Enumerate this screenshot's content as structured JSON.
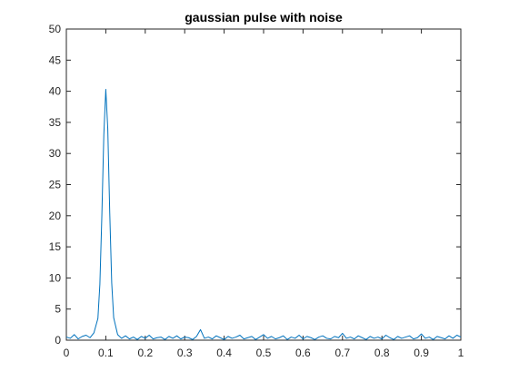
{
  "window": {
    "background": "#ffffff"
  },
  "chart_data": {
    "type": "line",
    "title": "gaussian pulse with noise",
    "xlabel": "",
    "ylabel": "",
    "xlim": [
      0,
      1
    ],
    "ylim": [
      0,
      50
    ],
    "xticks": [
      0,
      0.1,
      0.2,
      0.3,
      0.4,
      0.5,
      0.6,
      0.7,
      0.8,
      0.9,
      1
    ],
    "xtick_labels": [
      "0",
      "0.1",
      "0.2",
      "0.3",
      "0.4",
      "0.5",
      "0.6",
      "0.7",
      "0.8",
      "0.9",
      "1"
    ],
    "yticks": [
      0,
      5,
      10,
      15,
      20,
      25,
      30,
      35,
      40,
      45,
      50
    ],
    "ytick_labels": [
      "0",
      "5",
      "10",
      "15",
      "20",
      "25",
      "30",
      "35",
      "40",
      "45",
      "50"
    ],
    "grid": false,
    "series": [
      {
        "color": "#0072BD",
        "x": [
          0.0,
          0.01,
          0.02,
          0.03,
          0.04,
          0.05,
          0.06,
          0.07,
          0.08,
          0.085,
          0.09,
          0.095,
          0.1,
          0.105,
          0.11,
          0.115,
          0.12,
          0.13,
          0.14,
          0.15,
          0.16,
          0.17,
          0.18,
          0.19,
          0.2,
          0.21,
          0.22,
          0.23,
          0.24,
          0.25,
          0.26,
          0.27,
          0.28,
          0.29,
          0.3,
          0.31,
          0.32,
          0.33,
          0.34,
          0.35,
          0.36,
          0.37,
          0.38,
          0.39,
          0.4,
          0.41,
          0.42,
          0.43,
          0.44,
          0.45,
          0.46,
          0.47,
          0.48,
          0.49,
          0.5,
          0.51,
          0.52,
          0.53,
          0.54,
          0.55,
          0.56,
          0.57,
          0.58,
          0.59,
          0.6,
          0.61,
          0.62,
          0.63,
          0.64,
          0.65,
          0.66,
          0.67,
          0.68,
          0.69,
          0.7,
          0.71,
          0.72,
          0.73,
          0.74,
          0.75,
          0.76,
          0.77,
          0.78,
          0.79,
          0.8,
          0.81,
          0.82,
          0.83,
          0.84,
          0.85,
          0.86,
          0.87,
          0.88,
          0.89,
          0.9,
          0.91,
          0.92,
          0.93,
          0.94,
          0.95,
          0.96,
          0.97,
          0.98,
          0.99,
          1.0
        ],
        "y": [
          0.5,
          0.3,
          0.9,
          0.2,
          0.6,
          0.8,
          0.4,
          1.2,
          3.5,
          9.0,
          20.0,
          33.0,
          40.3,
          34.0,
          20.5,
          9.2,
          3.6,
          0.9,
          0.3,
          0.7,
          0.2,
          0.5,
          0.1,
          0.6,
          0.3,
          0.8,
          0.2,
          0.4,
          0.5,
          0.1,
          0.6,
          0.3,
          0.7,
          0.2,
          0.5,
          0.4,
          0.1,
          0.6,
          1.7,
          0.3,
          0.5,
          0.2,
          0.7,
          0.4,
          0.1,
          0.6,
          0.3,
          0.5,
          0.8,
          0.2,
          0.4,
          0.6,
          0.1,
          0.5,
          0.9,
          0.3,
          0.6,
          0.2,
          0.4,
          0.7,
          0.1,
          0.5,
          0.3,
          0.8,
          0.2,
          0.6,
          0.4,
          0.1,
          0.5,
          0.7,
          0.3,
          0.2,
          0.6,
          0.4,
          1.1,
          0.3,
          0.5,
          0.2,
          0.7,
          0.4,
          0.1,
          0.6,
          0.3,
          0.5,
          0.2,
          0.8,
          0.4,
          0.1,
          0.6,
          0.3,
          0.5,
          0.7,
          0.2,
          0.4,
          1.0,
          0.3,
          0.5,
          0.1,
          0.6,
          0.4,
          0.2,
          0.7,
          0.3,
          0.8,
          0.5
        ]
      }
    ]
  }
}
